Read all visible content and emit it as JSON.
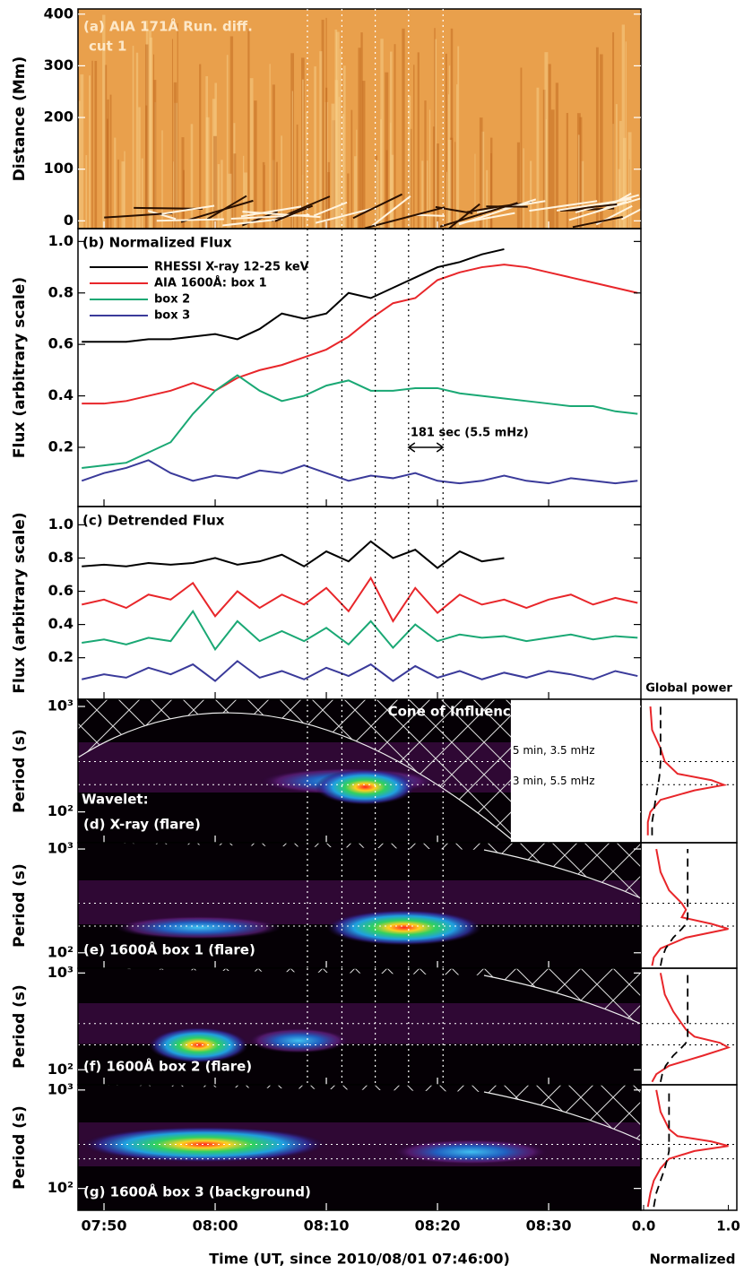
{
  "time_axis": {
    "xlabel": "Time (UT, since 2010/08/01 07:46:00)",
    "xlim": [
      1.66,
      52.3
    ],
    "xticks": [
      {
        "value": 4,
        "label": "07:50"
      },
      {
        "value": 14,
        "label": "08:00"
      },
      {
        "value": 24,
        "label": "08:10"
      },
      {
        "value": 34,
        "label": "08:20"
      },
      {
        "value": 44,
        "label": "08:30"
      }
    ],
    "marker_times": [
      22.3,
      25.4,
      28.4,
      31.4,
      34.5
    ]
  },
  "chart_data": [
    {
      "type": "image",
      "title": "(a) AIA 171Å Run. diff.",
      "subtitle": "cut 1",
      "ylabel": "Distance (Mm)",
      "ylim": [
        -15,
        410
      ],
      "yticks": [
        0,
        100,
        200,
        300,
        400
      ]
    },
    {
      "type": "line",
      "title": "(b) Normalized Flux",
      "ylabel": "Flux (arbitrary scale)",
      "ylim": [
        -0.03,
        1.05
      ],
      "yticks": [
        0.2,
        0.4,
        0.6,
        0.8,
        {
          "value": 1,
          "label": "1.0"
        }
      ],
      "x": [
        2,
        4,
        6,
        8,
        10,
        12,
        14,
        16,
        18,
        20,
        22,
        24,
        26,
        28,
        30,
        32,
        34,
        36,
        38,
        40,
        42,
        44,
        46,
        48,
        50,
        52
      ],
      "series": [
        {
          "name": "RHESSI X-ray 12-25 keV",
          "color": "#000000",
          "values": [
            0.61,
            0.61,
            0.61,
            0.62,
            0.62,
            0.63,
            0.64,
            0.62,
            0.66,
            0.72,
            0.7,
            0.72,
            0.8,
            0.78,
            0.82,
            0.86,
            0.9,
            0.92,
            0.95,
            0.97,
            null,
            null,
            null,
            null,
            null,
            null
          ]
        },
        {
          "name": "AIA 1600Å: box 1",
          "color": "#e8262a",
          "values": [
            0.37,
            0.37,
            0.38,
            0.4,
            0.42,
            0.45,
            0.42,
            0.47,
            0.5,
            0.52,
            0.55,
            0.58,
            0.63,
            0.7,
            0.76,
            0.78,
            0.85,
            0.88,
            0.9,
            0.91,
            0.9,
            0.88,
            0.86,
            0.84,
            0.82,
            0.8
          ]
        },
        {
          "name": "box 2",
          "color": "#1aa874",
          "values": [
            0.12,
            0.13,
            0.14,
            0.18,
            0.22,
            0.33,
            0.42,
            0.48,
            0.42,
            0.38,
            0.4,
            0.44,
            0.46,
            0.42,
            0.42,
            0.43,
            0.43,
            0.41,
            0.4,
            0.39,
            0.38,
            0.37,
            0.36,
            0.36,
            0.34,
            0.33
          ]
        },
        {
          "name": "box 3",
          "color": "#3a3a9a",
          "values": [
            0.07,
            0.1,
            0.12,
            0.15,
            0.1,
            0.07,
            0.09,
            0.08,
            0.11,
            0.1,
            0.13,
            0.1,
            0.07,
            0.09,
            0.08,
            0.1,
            0.07,
            0.06,
            0.07,
            0.09,
            0.07,
            0.06,
            0.08,
            0.07,
            0.06,
            0.07
          ]
        }
      ],
      "annotation": {
        "text": "181 sec (5.5 mHz)",
        "x": [
          31.4,
          34.5
        ],
        "y": 0.2
      }
    },
    {
      "type": "line",
      "title": "(c) Detrended Flux",
      "ylabel": "Flux (arbitrary scale)",
      "ylim": [
        -0.05,
        1.11
      ],
      "yticks": [
        0.2,
        0.4,
        0.6,
        0.8,
        {
          "value": 1,
          "label": "1.0"
        }
      ],
      "x": [
        2,
        4,
        6,
        8,
        10,
        12,
        14,
        16,
        18,
        20,
        22,
        24,
        26,
        28,
        30,
        32,
        34,
        36,
        38,
        40,
        42,
        44,
        46,
        48,
        50,
        52
      ],
      "series": [
        {
          "color": "#000000",
          "values": [
            0.75,
            0.76,
            0.75,
            0.77,
            0.76,
            0.77,
            0.8,
            0.76,
            0.78,
            0.82,
            0.75,
            0.84,
            0.78,
            0.9,
            0.8,
            0.85,
            0.74,
            0.84,
            0.78,
            0.8,
            null,
            null,
            null,
            null,
            null,
            null
          ]
        },
        {
          "color": "#e8262a",
          "values": [
            0.52,
            0.55,
            0.5,
            0.58,
            0.55,
            0.65,
            0.45,
            0.6,
            0.5,
            0.58,
            0.52,
            0.62,
            0.48,
            0.68,
            0.42,
            0.62,
            0.47,
            0.58,
            0.52,
            0.55,
            0.5,
            0.55,
            0.58,
            0.52,
            0.56,
            0.53
          ]
        },
        {
          "color": "#1aa874",
          "values": [
            0.29,
            0.31,
            0.28,
            0.32,
            0.3,
            0.48,
            0.25,
            0.42,
            0.3,
            0.36,
            0.3,
            0.38,
            0.28,
            0.42,
            0.26,
            0.4,
            0.3,
            0.34,
            0.32,
            0.33,
            0.3,
            0.32,
            0.34,
            0.31,
            0.33,
            0.32
          ]
        },
        {
          "color": "#3a3a9a",
          "values": [
            0.07,
            0.1,
            0.08,
            0.14,
            0.1,
            0.16,
            0.06,
            0.18,
            0.08,
            0.12,
            0.07,
            0.14,
            0.09,
            0.16,
            0.06,
            0.15,
            0.08,
            0.12,
            0.07,
            0.11,
            0.08,
            0.12,
            0.1,
            0.07,
            0.12,
            0.09
          ]
        }
      ]
    },
    {
      "type": "wavelet",
      "label": "Wavelet:",
      "title": "(d) X-ray (flare)",
      "coi_label": "Cone of Influence",
      "ylabel": "Period (s)",
      "log": true,
      "ylim": [
        51,
        1170
      ],
      "yticks": [
        {
          "value": 100,
          "label": "10²"
        },
        {
          "value": 1000,
          "label": "10³"
        }
      ],
      "data_end": 40.6,
      "period_lines": [
        {
          "value": 300,
          "label": "5 min, 3.5 mHz"
        },
        {
          "value": 181,
          "label": "3 min, 5.5 mHz"
        }
      ],
      "power_peaks": [
        {
          "x": [
            18,
            34
          ],
          "period": 195,
          "power": 0.5
        },
        {
          "x": [
            23,
            32
          ],
          "period": 172,
          "power": 1
        }
      ],
      "global_power": {
        "title": "Global power",
        "xlim": [
          0,
          1.1
        ],
        "period": [
          60,
          80,
          100,
          130,
          160,
          180,
          200,
          230,
          300,
          400,
          600,
          1000
        ],
        "values": [
          0.05,
          0.05,
          0.08,
          0.2,
          0.6,
          0.95,
          0.8,
          0.4,
          0.25,
          0.2,
          0.1,
          0.08
        ],
        "significance": [
          0.1,
          0.1,
          0.12,
          0.14,
          0.16,
          0.17,
          0.18,
          0.19,
          0.2,
          0.2,
          0.2,
          0.2
        ]
      }
    },
    {
      "type": "wavelet",
      "title": "(e) 1600Å box 1 (flare)",
      "ylabel": "Period (s)",
      "log": true,
      "ylim": [
        71,
        1150
      ],
      "yticks": [
        {
          "value": 100,
          "label": "10²"
        },
        {
          "value": 1000,
          "label": "10³"
        }
      ],
      "period_lines": [
        300,
        181
      ],
      "power_peaks": [
        {
          "x": [
            5,
            20
          ],
          "period": 175,
          "power": 0.3
        },
        {
          "x": [
            24,
            38
          ],
          "period": 175,
          "power": 1
        }
      ],
      "global_power": {
        "xlim": [
          0,
          1.1
        ],
        "period": [
          75,
          90,
          110,
          140,
          170,
          190,
          220,
          260,
          300,
          400,
          600,
          1000
        ],
        "values": [
          0.1,
          0.12,
          0.2,
          0.5,
          1.0,
          0.8,
          0.45,
          0.5,
          0.45,
          0.3,
          0.2,
          0.15
        ],
        "significance": [
          0.2,
          0.22,
          0.26,
          0.35,
          0.45,
          0.5,
          0.52,
          0.52,
          0.52,
          0.52,
          0.52,
          0.52
        ]
      }
    },
    {
      "type": "wavelet",
      "title": "(f) 1600Å box 2 (flare)",
      "ylabel": "Period (s)",
      "log": true,
      "ylim": [
        70,
        1120
      ],
      "yticks": [
        {
          "value": 100,
          "label": "10²"
        },
        {
          "value": 1000,
          "label": "10³"
        }
      ],
      "period_lines": [
        300,
        181
      ],
      "power_peaks": [
        {
          "x": [
            8,
            17
          ],
          "period": 180,
          "power": 1
        },
        {
          "x": [
            17,
            26
          ],
          "period": 200,
          "power": 0.4
        }
      ],
      "global_power": {
        "xlim": [
          0,
          1.1
        ],
        "period": [
          75,
          90,
          110,
          140,
          170,
          190,
          220,
          260,
          300,
          400,
          600,
          1000
        ],
        "values": [
          0.1,
          0.15,
          0.3,
          0.7,
          1.0,
          0.9,
          0.6,
          0.5,
          0.45,
          0.35,
          0.25,
          0.2
        ],
        "significance": [
          0.2,
          0.22,
          0.26,
          0.35,
          0.45,
          0.5,
          0.52,
          0.52,
          0.52,
          0.52,
          0.52,
          0.52
        ]
      }
    },
    {
      "type": "wavelet",
      "title": "(g) 1600Å box 3 (background)",
      "ylabel": "Period (s)",
      "log": true,
      "ylim": [
        60,
        1130
      ],
      "yticks": [
        {
          "value": 100,
          "label": "10²"
        },
        {
          "value": 1000,
          "label": "10³"
        }
      ],
      "period_lines": [
        280,
        200
      ],
      "power_peaks": [
        {
          "x": [
            2,
            24
          ],
          "period": 280,
          "power": 1
        },
        {
          "x": [
            30,
            44
          ],
          "period": 235,
          "power": 0.4
        }
      ],
      "global_power": {
        "xlim": [
          0,
          1.1
        ],
        "xticks": [
          {
            "value": 0,
            "label": "0.0"
          },
          {
            "value": 1,
            "label": "1.0"
          }
        ],
        "xlabel": "Normalized",
        "period": [
          65,
          90,
          120,
          160,
          200,
          240,
          270,
          300,
          340,
          400,
          600,
          1000
        ],
        "values": [
          0.05,
          0.08,
          0.12,
          0.2,
          0.3,
          0.6,
          1.0,
          0.8,
          0.4,
          0.3,
          0.2,
          0.15
        ],
        "significance": [
          0.12,
          0.15,
          0.2,
          0.25,
          0.28,
          0.3,
          0.3,
          0.3,
          0.3,
          0.3,
          0.3,
          0.3
        ]
      }
    }
  ]
}
